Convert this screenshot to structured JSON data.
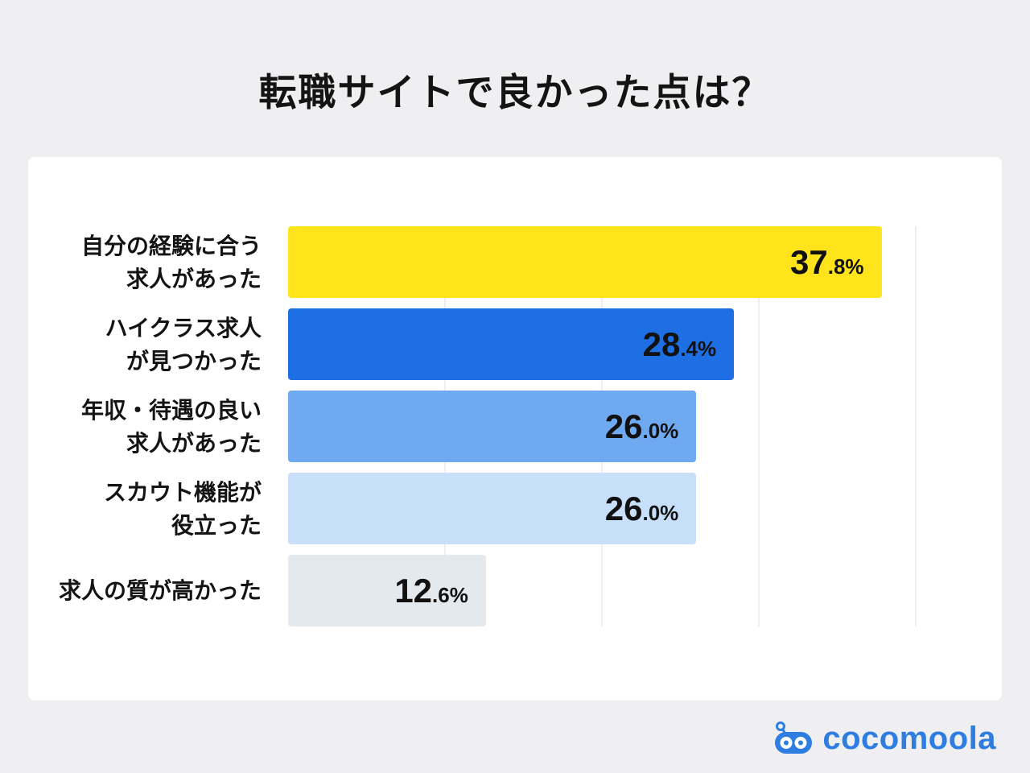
{
  "title": "転職サイトで良かった点は？",
  "brand": {
    "name": "cocomoola",
    "color": "#2E7EE2"
  },
  "chart_data": {
    "type": "bar",
    "orientation": "horizontal",
    "title": "転職サイトで良かった点は？",
    "xlabel": "",
    "ylabel": "",
    "xlim": [
      0,
      41
    ],
    "gridlines": [
      10,
      20,
      30,
      40
    ],
    "grid": true,
    "legend": false,
    "gridline_color": "#ECEEF4",
    "value_label_color": "#111111",
    "categories": [
      "自分の経験に合う求人があった",
      "ハイクラス求人が見つかった",
      "年収・待遇の良い求人があった",
      "スカウト機能が役立った",
      "求人の質が高かった"
    ],
    "values": [
      37.8,
      28.4,
      26.0,
      26.0,
      12.6
    ],
    "rows": [
      {
        "line1": "自分の経験に合う",
        "line2": "求人があった",
        "value": 37.8,
        "value_int": "37",
        "value_frac": ".8%",
        "color": "#FFE41C"
      },
      {
        "line1": "ハイクラス求人",
        "line2": "が見つかった",
        "value": 28.4,
        "value_int": "28",
        "value_frac": ".4%",
        "color": "#1E6FE4"
      },
      {
        "line1": "年収・待遇の良い",
        "line2": "求人があった",
        "value": 26.0,
        "value_int": "26",
        "value_frac": ".0%",
        "color": "#6FA9F0"
      },
      {
        "line1": "スカウト機能が",
        "line2": "役立った",
        "value": 26.0,
        "value_int": "26",
        "value_frac": ".0%",
        "color": "#C8DFF9"
      },
      {
        "line1": "求人の質が高かった",
        "line2": "",
        "value": 12.6,
        "value_int": "12",
        "value_frac": ".6%",
        "color": "#E4E9EE"
      }
    ]
  }
}
